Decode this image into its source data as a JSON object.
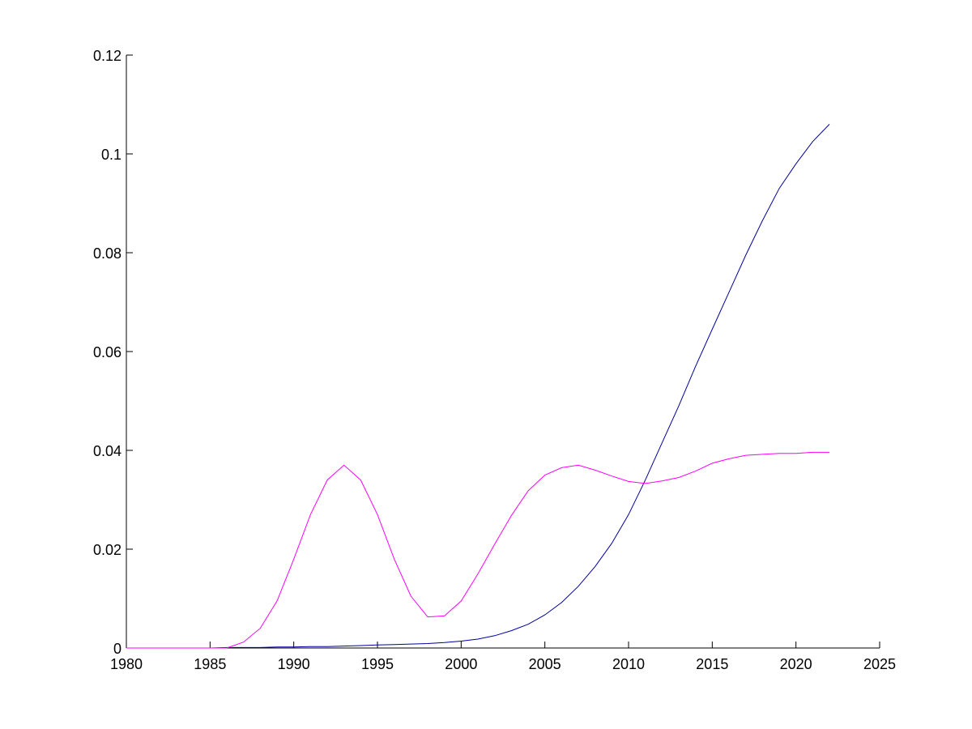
{
  "chart_data": {
    "type": "line",
    "title": "",
    "xlabel": "",
    "ylabel": "",
    "xlim": [
      1980,
      2025
    ],
    "ylim": [
      0,
      0.12
    ],
    "x_ticks": [
      "1980",
      "1985",
      "1990",
      "1995",
      "2000",
      "2005",
      "2010",
      "2015",
      "2020",
      "2025"
    ],
    "y_ticks": [
      "0",
      "0.02",
      "0.04",
      "0.06",
      "0.08",
      "0.1",
      "0.12"
    ],
    "grid": false,
    "legend": "none",
    "series": [
      {
        "color": "#0000a0",
        "x": [
          1980,
          1981,
          1982,
          1983,
          1984,
          1985,
          1986,
          1987,
          1988,
          1989,
          1990,
          1991,
          1992,
          1993,
          1994,
          1995,
          1996,
          1997,
          1998,
          1999,
          2000,
          2001,
          2002,
          2003,
          2004,
          2005,
          2006,
          2007,
          2008,
          2009,
          2010,
          2011,
          2012,
          2013,
          2014,
          2015,
          2016,
          2017,
          2018,
          2019,
          2020,
          2021,
          2022
        ],
        "y": [
          0,
          0,
          0,
          0,
          0,
          0,
          0.0001,
          0.0001,
          0.0001,
          0.0002,
          0.0002,
          0.0003,
          0.0003,
          0.0004,
          0.0005,
          0.0006,
          0.0007,
          0.0008,
          0.0009,
          0.0011,
          0.0014,
          0.0018,
          0.0025,
          0.0035,
          0.0048,
          0.0067,
          0.0092,
          0.0125,
          0.0165,
          0.0212,
          0.027,
          0.034,
          0.0415,
          0.049,
          0.057,
          0.0645,
          0.072,
          0.0795,
          0.0865,
          0.093,
          0.098,
          0.1025,
          0.106
        ]
      },
      {
        "color": "#ff00ff",
        "x": [
          1980,
          1981,
          1982,
          1983,
          1984,
          1985,
          1986,
          1987,
          1988,
          1989,
          1990,
          1991,
          1992,
          1993,
          1994,
          1995,
          1996,
          1997,
          1998,
          1999,
          2000,
          2001,
          2002,
          2003,
          2004,
          2005,
          2006,
          2007,
          2008,
          2009,
          2010,
          2011,
          2012,
          2013,
          2014,
          2015,
          2016,
          2017,
          2018,
          2019,
          2020,
          2021,
          2022
        ],
        "y": [
          0,
          0,
          0,
          0,
          0,
          0,
          0,
          0.0012,
          0.004,
          0.0095,
          0.018,
          0.027,
          0.034,
          0.037,
          0.034,
          0.027,
          0.018,
          0.0105,
          0.0063,
          0.0065,
          0.0095,
          0.015,
          0.021,
          0.0268,
          0.0318,
          0.035,
          0.0365,
          0.037,
          0.036,
          0.0348,
          0.0337,
          0.0333,
          0.0338,
          0.0345,
          0.0358,
          0.0374,
          0.0383,
          0.039,
          0.0392,
          0.0394,
          0.0394,
          0.0396,
          0.0396
        ]
      }
    ]
  }
}
